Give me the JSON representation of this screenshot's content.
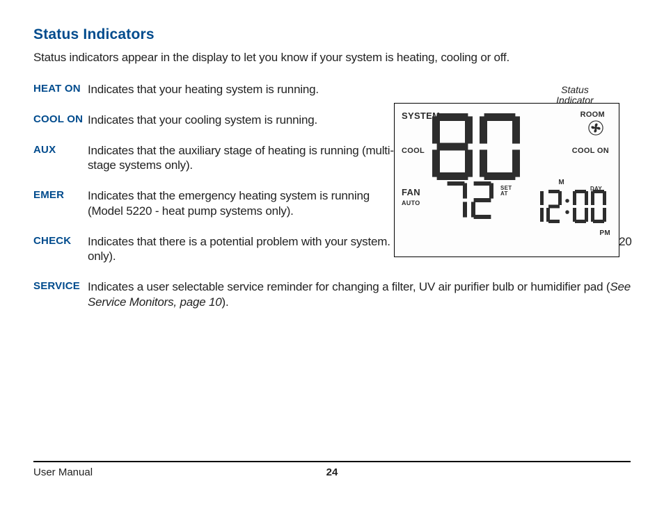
{
  "heading": "Status Indicators",
  "intro": "Status indicators appear in the display to let you know if your system is heating, cooling or off.",
  "definitions": [
    {
      "term": "HEAT ON",
      "desc": "Indicates that your heating system is running.",
      "wide": false
    },
    {
      "term": "COOL ON",
      "desc": "Indicates that your cooling system is running.",
      "wide": false
    },
    {
      "term": "AUX",
      "desc": "Indicates that the auxiliary stage of heating is running (multi-stage systems only).",
      "wide": false
    },
    {
      "term": "EMER",
      "desc": "Indicates that the emergency heating system is running (Model 5220 - heat pump systems only).",
      "wide": false
    },
    {
      "term": "CHECK",
      "desc": "Indicates that there is a potential problem with your system. Contact a local service technician (Model 5220 only).",
      "wide": true
    },
    {
      "term": "SERVICE",
      "desc_pre": "Indicates a user selectable service reminder for changing a filter, UV air purifier bulb or humidifier pad (",
      "desc_em": "See Service Monitors, page 10",
      "desc_post": ").",
      "wide": true
    }
  ],
  "callout": {
    "line1": "Status",
    "line2": "Indicator"
  },
  "lcd": {
    "labels": {
      "system": "SYSTEM",
      "cool": "COOL",
      "fan": "FAN",
      "auto": "AUTO",
      "room": "ROOM",
      "coolon": "COOL ON",
      "m": "M",
      "day": "DAY",
      "pm": "PM",
      "set": "SET",
      "at": "AT"
    },
    "big_temp": "80",
    "set_temp": "72",
    "time_h": "12",
    "time_m": "00",
    "colors": {
      "seg": "#2d2d2d",
      "seg_dim": "#d8d8d8"
    }
  },
  "footer": {
    "left": "User Manual",
    "page": "24"
  },
  "colors": {
    "accent": "#004b8d",
    "text": "#222222",
    "rule": "#000000"
  }
}
